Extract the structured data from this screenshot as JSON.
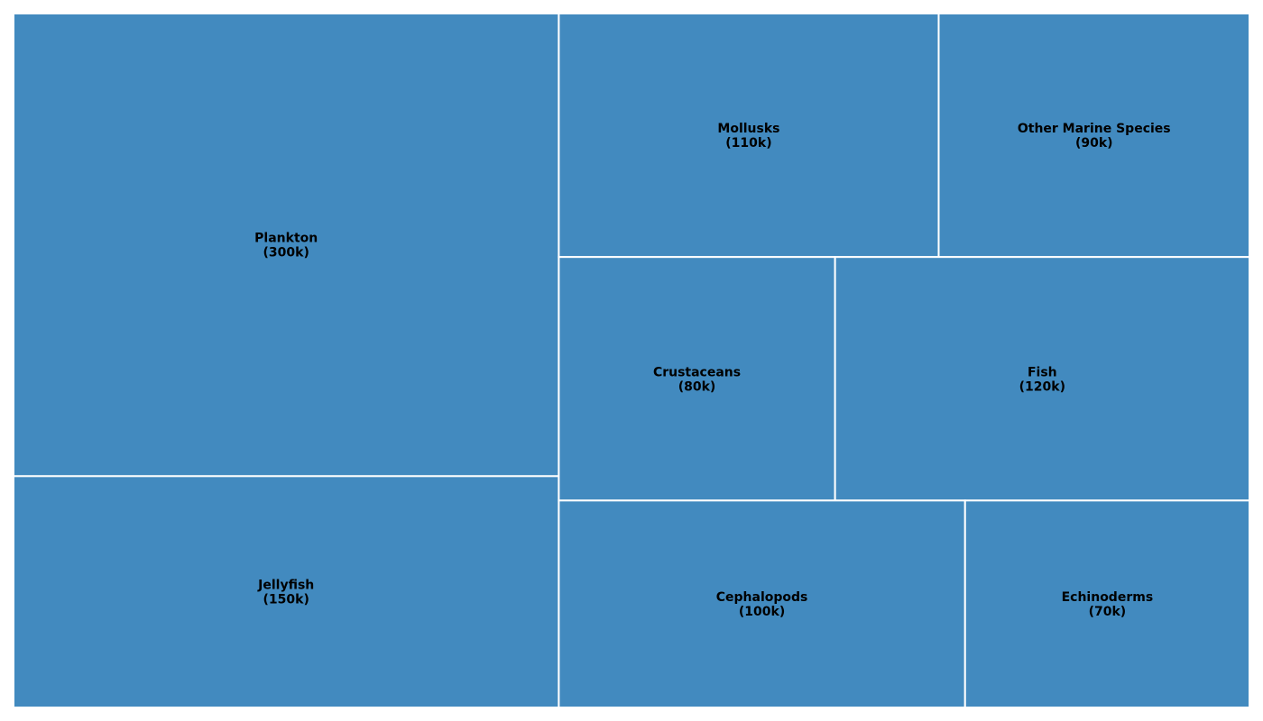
{
  "chart_data": {
    "type": "treemap",
    "title": "",
    "items": [
      {
        "name": "Plankton",
        "value": 300,
        "display": "(300k)"
      },
      {
        "name": "Jellyfish",
        "value": 150,
        "display": "(150k)"
      },
      {
        "name": "Mollusks",
        "value": 110,
        "display": "(110k)"
      },
      {
        "name": "Other Marine Species",
        "value": 90,
        "display": "(90k)"
      },
      {
        "name": "Crustaceans",
        "value": 80,
        "display": "(80k)"
      },
      {
        "name": "Fish",
        "value": 120,
        "display": "(120k)"
      },
      {
        "name": "Cephalopods",
        "value": 100,
        "display": "(100k)"
      },
      {
        "name": "Echinoderms",
        "value": 70,
        "display": "(70k)"
      }
    ],
    "colors": {
      "tile": "#428abf",
      "border": "#ffffff",
      "text": "#000000"
    }
  }
}
